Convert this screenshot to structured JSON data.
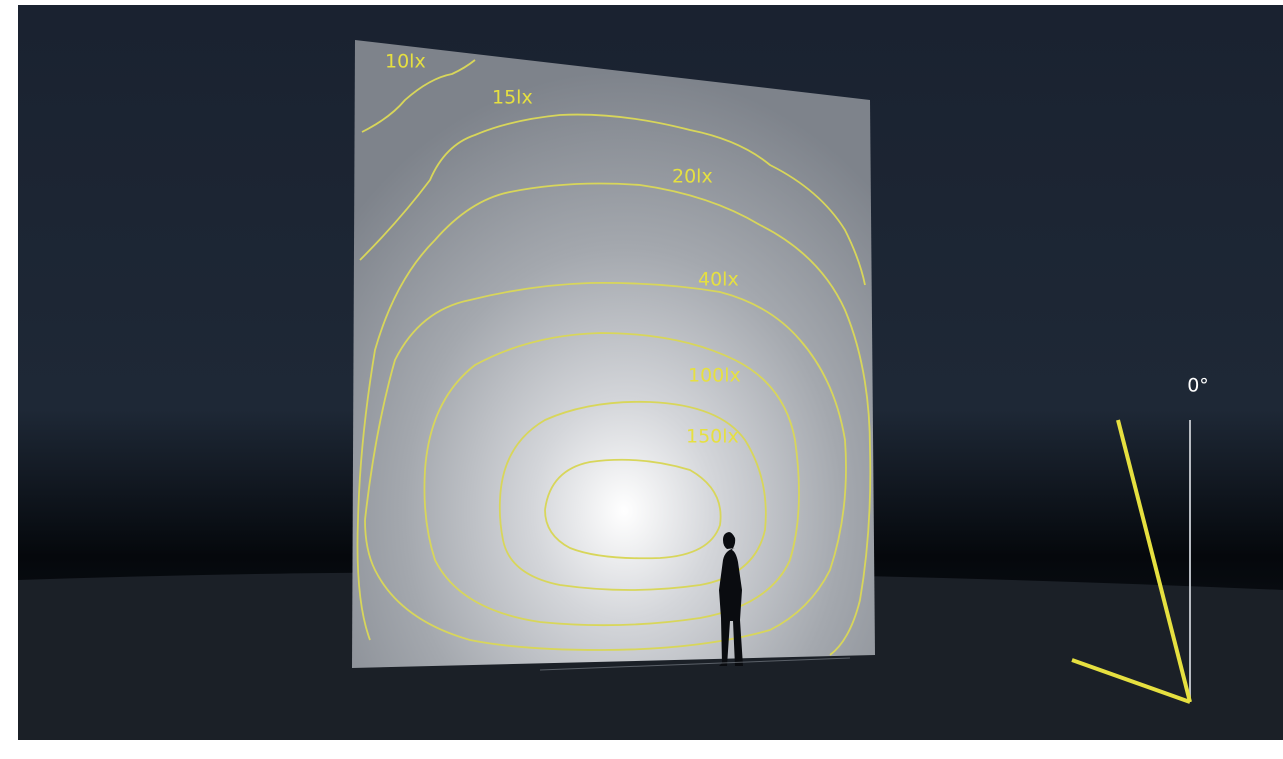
{
  "contours": [
    {
      "label": "10lx"
    },
    {
      "label": "15lx"
    },
    {
      "label": "20lx"
    },
    {
      "label": "40lx"
    },
    {
      "label": "100lx"
    },
    {
      "label": "150lx"
    }
  ],
  "angle_indicator": {
    "label": "0°"
  }
}
